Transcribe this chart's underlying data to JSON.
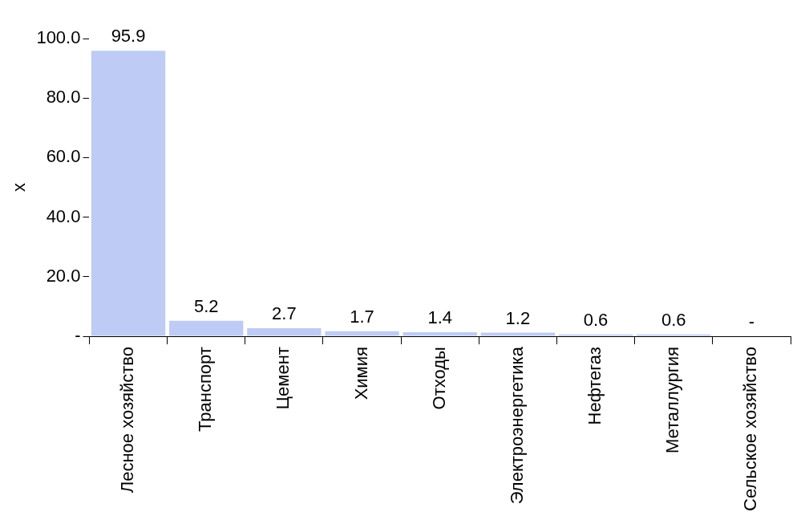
{
  "chart_data": {
    "type": "bar",
    "ylabel": "x",
    "categories": [
      "Лесное хозяйство",
      "Транспорт",
      "Цемент",
      "Химия",
      "Отходы",
      "Электроэнергетика",
      "Нефтегаз",
      "Металлургия",
      "Сельское хозяйство"
    ],
    "values": [
      95.9,
      5.2,
      2.7,
      1.7,
      1.4,
      1.2,
      0.6,
      0.6,
      0
    ],
    "value_labels": [
      "95.9",
      "5.2",
      "2.7",
      "1.7",
      "1.4",
      "1.2",
      "0.6",
      "0.6",
      "-"
    ],
    "color": "#bdcbf5",
    "ylim": [
      0,
      100
    ],
    "yticks": [
      {
        "value": 0,
        "label": "-"
      },
      {
        "value": 20,
        "label": "20.0"
      },
      {
        "value": 40,
        "label": "40.0"
      },
      {
        "value": 60,
        "label": "60.0"
      },
      {
        "value": 80,
        "label": "80.0"
      },
      {
        "value": 100,
        "label": "100.0"
      }
    ],
    "grid": false,
    "legend": false
  }
}
